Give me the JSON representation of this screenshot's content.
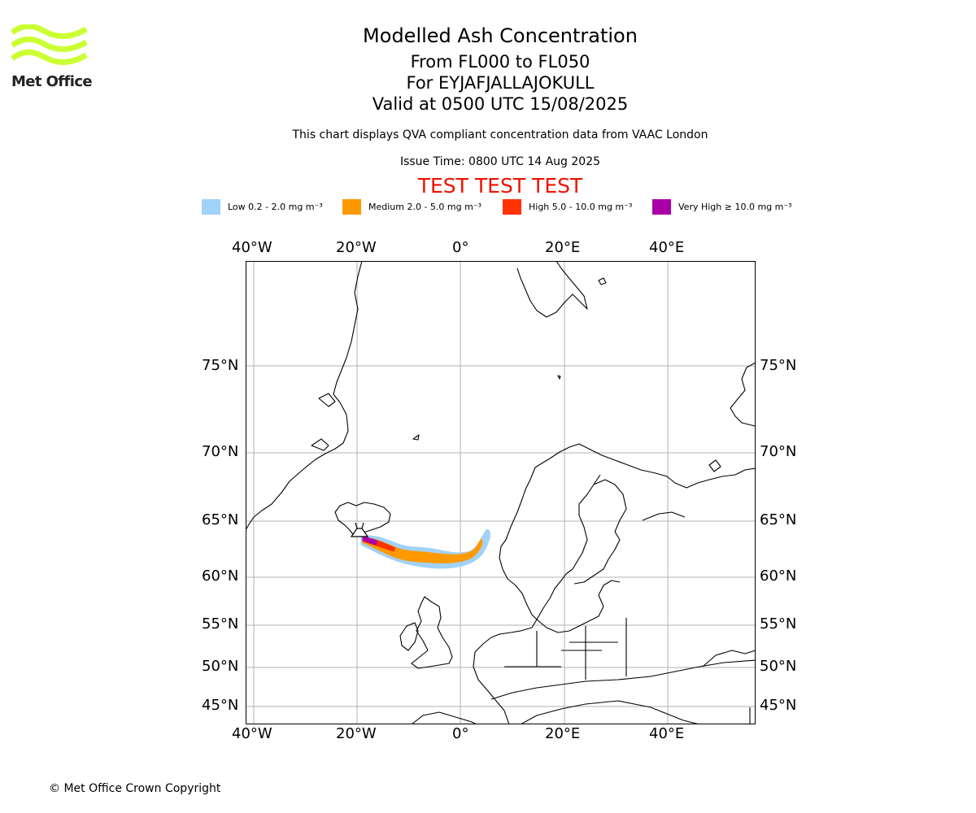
{
  "logo": {
    "brand_text": "Met Office",
    "color": "#ccff33"
  },
  "title": {
    "line1": "Modelled Ash Concentration",
    "line2": "From FL000 to FL050",
    "line3": "For EYJAFJALLAJOKULL",
    "line4": "Valid at 0500 UTC 15/08/2025"
  },
  "subtitle": "This chart displays QVA compliant concentration data from VAAC London",
  "issue_time": "Issue Time: 0800 UTC 14 Aug 2025",
  "test_banner": {
    "text": "TEST TEST TEST",
    "color": "#ee1100"
  },
  "legend": [
    {
      "label": "Low 0.2 - 2.0 mg m⁻³",
      "color": "#a0d2fa"
    },
    {
      "label": "Medium 2.0 - 5.0 mg m⁻³",
      "color": "#ff9900"
    },
    {
      "label": "High 5.0 - 10.0 mg m⁻³",
      "color": "#ff3300"
    },
    {
      "label": "Very High ≥ 10.0 mg m⁻³",
      "color": "#aa00aa"
    }
  ],
  "map": {
    "lon_labels": [
      "40°W",
      "20°W",
      "0°",
      "20°E",
      "40°E"
    ],
    "lat_labels": [
      "75°N",
      "70°N",
      "65°N",
      "60°N",
      "55°N",
      "50°N",
      "45°N"
    ],
    "extent": {
      "lon_min": -41.5,
      "lon_max": 56.5,
      "lat_min": 43.6,
      "lat_max": 80.3
    },
    "grid": true
  },
  "copyright": "© Met Office Crown Copyright"
}
